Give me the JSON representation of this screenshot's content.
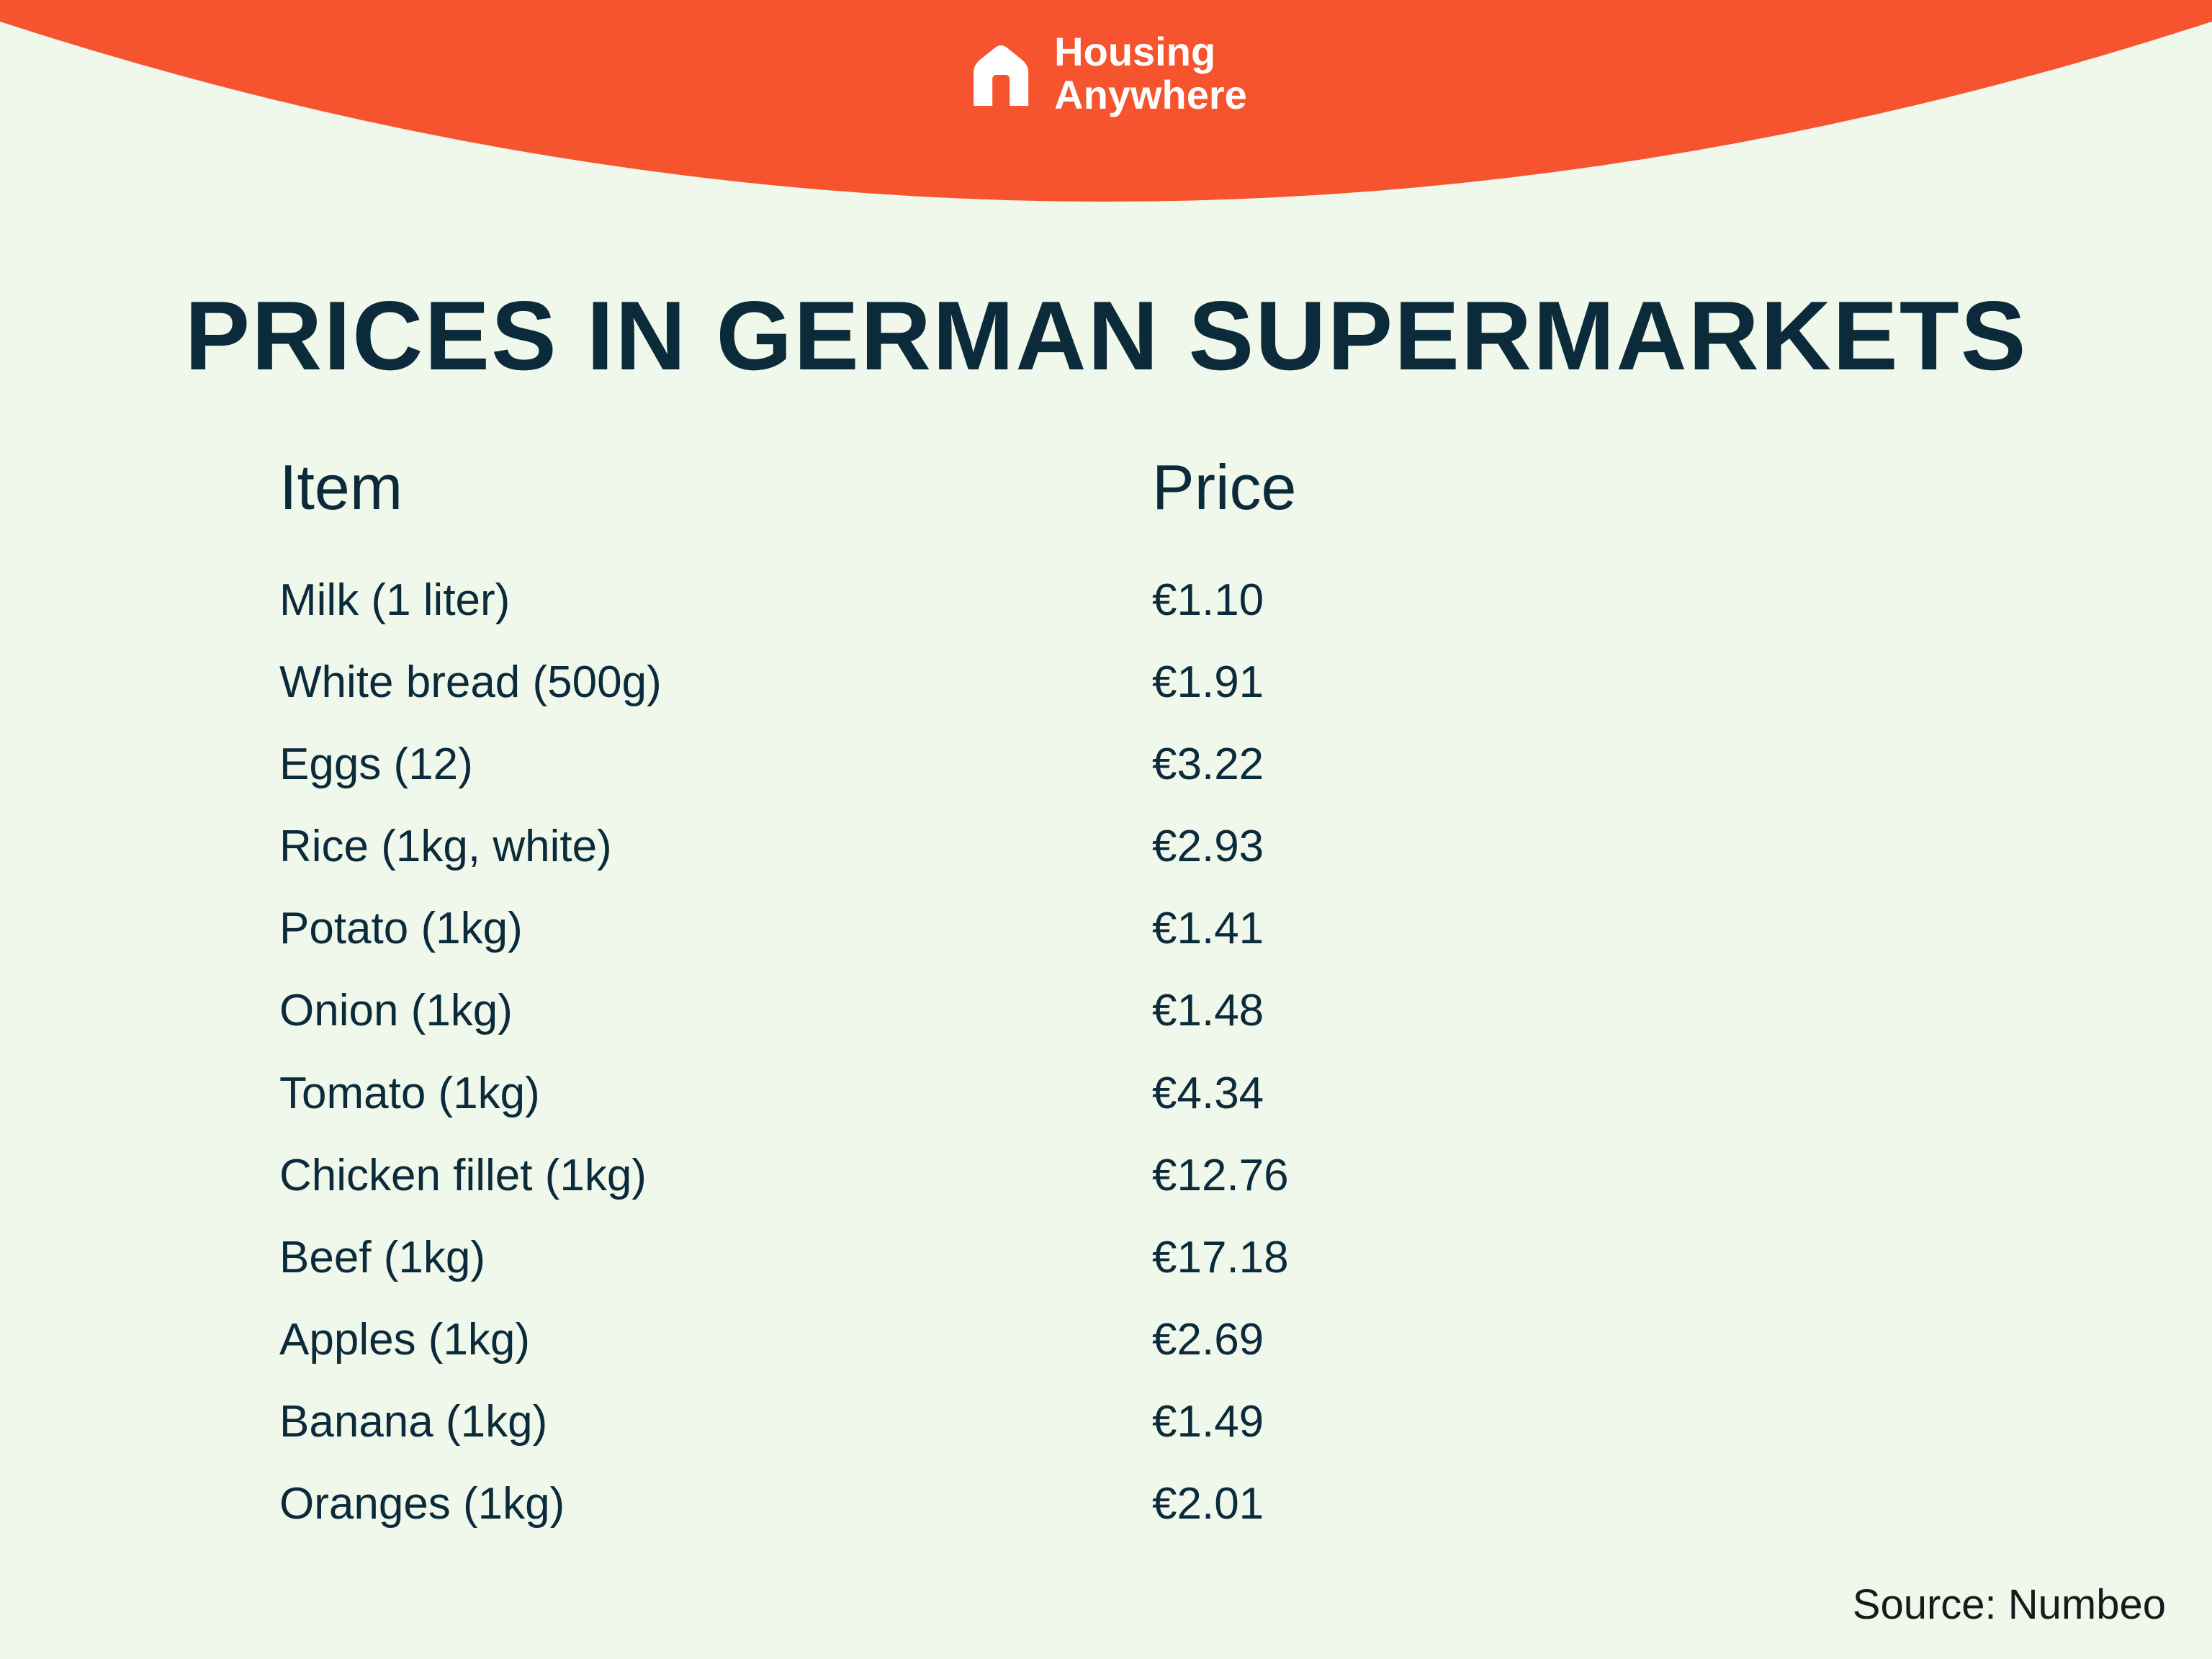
{
  "brand": {
    "line1": "Housing",
    "line2": "Anywhere",
    "arc_color": "#f6542f",
    "text_color": "#ffffff"
  },
  "background_color": "#f0f8ec",
  "title": "PRICES IN GERMAN SUPERMARKETS",
  "title_color": "#0b2b3a",
  "table": {
    "header_item": "Item",
    "header_price": "Price",
    "text_color": "#0b2b3a",
    "header_fontsize": 88,
    "row_fontsize": 62,
    "rows": [
      {
        "item": "Milk (1 liter)",
        "price": "€1.10"
      },
      {
        "item": "White bread (500g)",
        "price": "€1.91"
      },
      {
        "item": "Eggs (12)",
        "price": "€3.22"
      },
      {
        "item": "Rice (1kg, white)",
        "price": "€2.93"
      },
      {
        "item": "Potato (1kg)",
        "price": "€1.41"
      },
      {
        "item": "Onion (1kg)",
        "price": "€1.48"
      },
      {
        "item": "Tomato (1kg)",
        "price": "€4.34"
      },
      {
        "item": "Chicken fillet (1kg)",
        "price": "€12.76"
      },
      {
        "item": "Beef (1kg)",
        "price": "€17.18"
      },
      {
        "item": "Apples (1kg)",
        "price": "€2.69"
      },
      {
        "item": "Banana (1kg)",
        "price": "€1.49"
      },
      {
        "item": "Oranges (1kg)",
        "price": "€2.01"
      }
    ]
  },
  "source": "Source: Numbeo"
}
